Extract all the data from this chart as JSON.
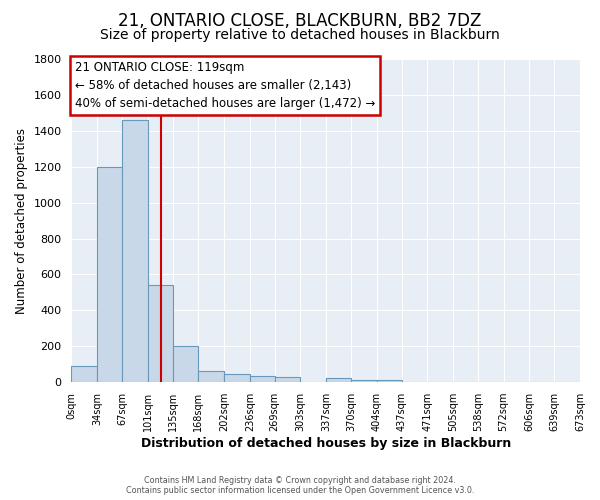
{
  "title": "21, ONTARIO CLOSE, BLACKBURN, BB2 7DZ",
  "subtitle": "Size of property relative to detached houses in Blackburn",
  "xlabel": "Distribution of detached houses by size in Blackburn",
  "ylabel": "Number of detached properties",
  "footer_line1": "Contains HM Land Registry data © Crown copyright and database right 2024.",
  "footer_line2": "Contains public sector information licensed under the Open Government Licence v3.0.",
  "bin_edges": [
    0,
    34,
    67,
    101,
    135,
    168,
    202,
    236,
    269,
    303,
    337,
    370,
    404,
    437,
    471,
    505,
    538,
    572,
    606,
    639,
    673
  ],
  "bin_labels": [
    "0sqm",
    "34sqm",
    "67sqm",
    "101sqm",
    "135sqm",
    "168sqm",
    "202sqm",
    "236sqm",
    "269sqm",
    "303sqm",
    "337sqm",
    "370sqm",
    "404sqm",
    "437sqm",
    "471sqm",
    "505sqm",
    "538sqm",
    "572sqm",
    "606sqm",
    "639sqm",
    "673sqm"
  ],
  "counts": [
    90,
    1200,
    1460,
    540,
    200,
    65,
    48,
    35,
    30,
    0,
    25,
    10,
    10,
    0,
    0,
    0,
    0,
    0,
    0,
    0
  ],
  "bar_color": "#c8d8e8",
  "bar_edge_color": "#6699bb",
  "vline_color": "#cc0000",
  "vline_x": 119,
  "annotation_title": "21 ONTARIO CLOSE: 119sqm",
  "annotation_line2": "← 58% of detached houses are smaller (2,143)",
  "annotation_line3": "40% of semi-detached houses are larger (1,472) →",
  "annotation_box_facecolor": "#ffffff",
  "annotation_box_edgecolor": "#cc0000",
  "ylim": [
    0,
    1800
  ],
  "yticks": [
    0,
    200,
    400,
    600,
    800,
    1000,
    1200,
    1400,
    1600,
    1800
  ],
  "bg_color": "#ffffff",
  "plot_bg_color": "#e8eef5",
  "title_fontsize": 12,
  "subtitle_fontsize": 10,
  "grid_color": "#ffffff"
}
